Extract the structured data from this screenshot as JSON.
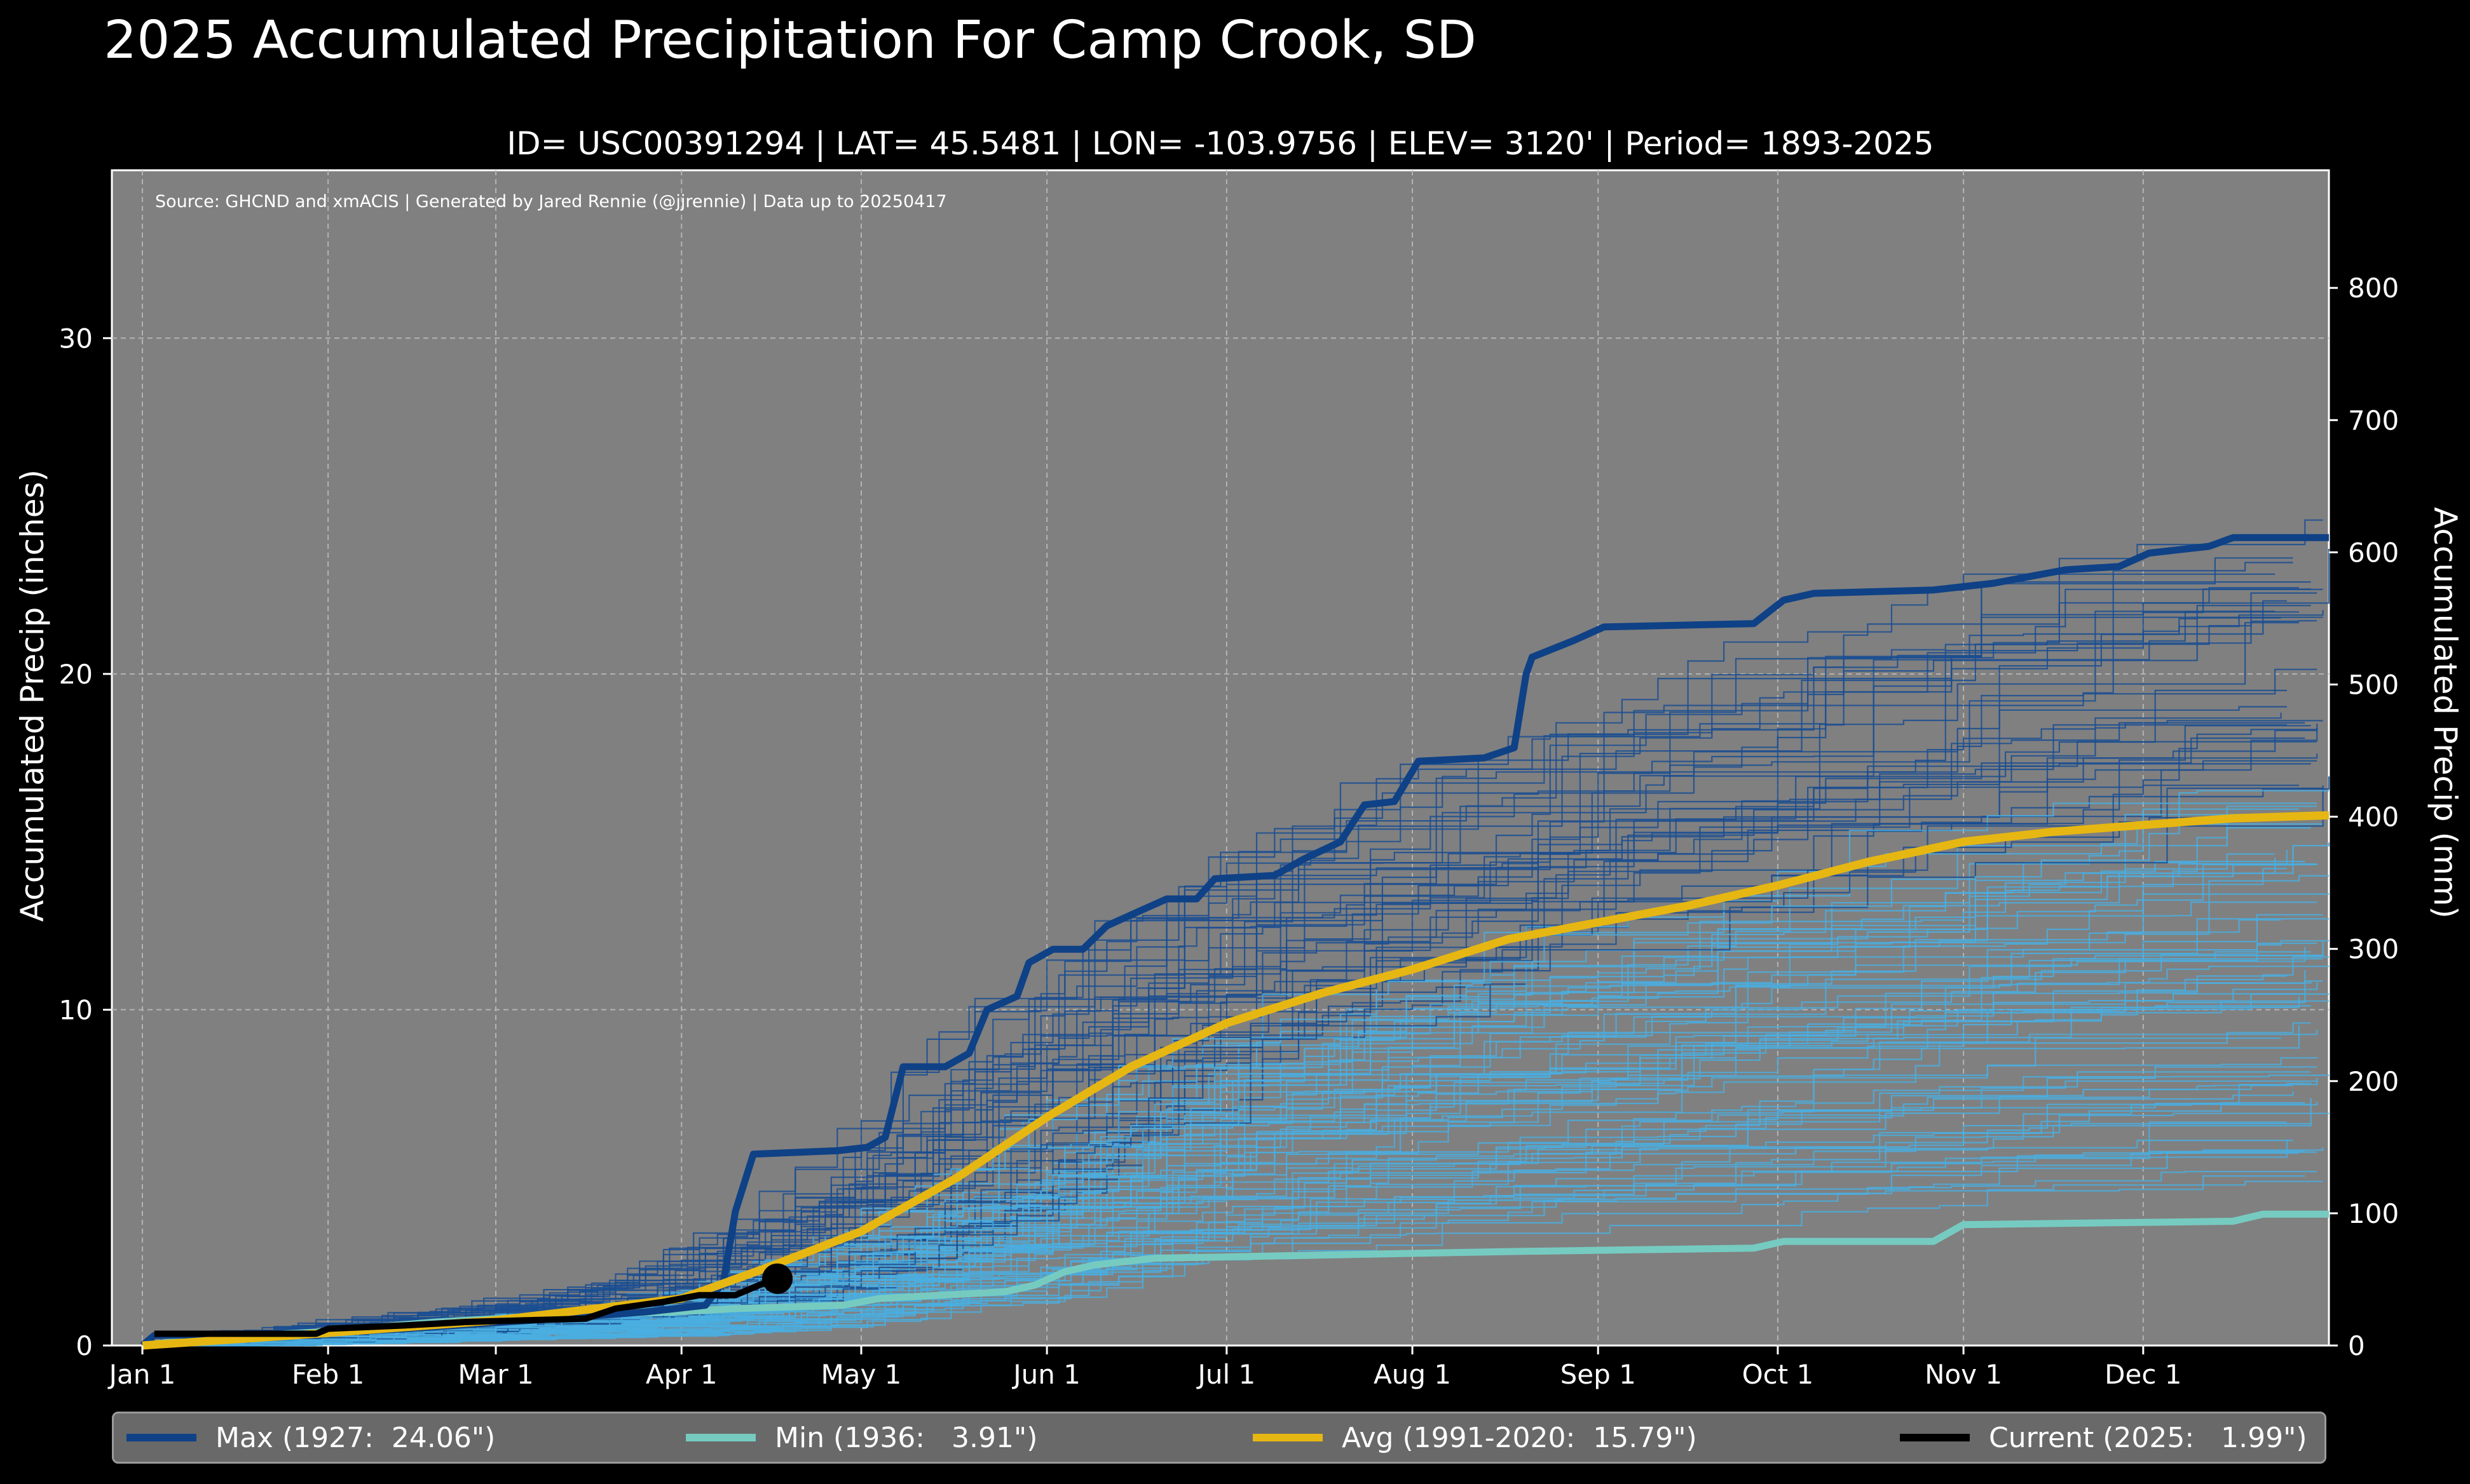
{
  "title": "2025 Accumulated Precipitation For Camp Crook, SD",
  "subtitle": "ID= USC00391294 | LAT= 45.5481 | LON= -103.9756 | ELEV= 3120' | Period= 1893-2025",
  "source_note": "Source: GHCND and xmACIS | Generated by Jared Rennie (@jjrennie) | Data up to 20250417",
  "colors": {
    "background": "#000000",
    "plot_bg": "#808080",
    "max": "#0f4186",
    "min": "#76cbc1",
    "avg": "#e6b712",
    "current": "#000000",
    "history_dark": "#1a4e92",
    "history_light": "#4aaee0"
  },
  "chart_data": {
    "type": "line",
    "xlabel": "",
    "ylabel": "Accumulated Precip (inches)",
    "ylabel_right": "Accumulated Precip (mm)",
    "x_unit": "day_of_year",
    "xlim": [
      1,
      366
    ],
    "ylim": [
      0,
      35
    ],
    "ylim_right_mm": [
      0,
      889
    ],
    "grid": true,
    "x_ticks": [
      {
        "day": 1,
        "label": "Jan 1"
      },
      {
        "day": 32,
        "label": "Feb 1"
      },
      {
        "day": 60,
        "label": "Mar 1"
      },
      {
        "day": 91,
        "label": "Apr 1"
      },
      {
        "day": 121,
        "label": "May 1"
      },
      {
        "day": 152,
        "label": "Jun 1"
      },
      {
        "day": 182,
        "label": "Jul 1"
      },
      {
        "day": 213,
        "label": "Aug 1"
      },
      {
        "day": 244,
        "label": "Sep 1"
      },
      {
        "day": 274,
        "label": "Oct 1"
      },
      {
        "day": 305,
        "label": "Nov 1"
      },
      {
        "day": 335,
        "label": "Dec 1"
      }
    ],
    "y_ticks_left": [
      0,
      10,
      20,
      30
    ],
    "y_ticks_right": [
      0,
      100,
      200,
      300,
      400,
      500,
      600,
      700,
      800
    ],
    "series": [
      {
        "name": "Max (1927:  24.06\")",
        "key": "max",
        "points": [
          [
            1,
            0
          ],
          [
            3,
            0.3
          ],
          [
            30,
            0.35
          ],
          [
            45,
            0.5
          ],
          [
            70,
            0.8
          ],
          [
            85,
            1.0
          ],
          [
            95,
            1.2
          ],
          [
            98,
            1.9
          ],
          [
            100,
            4.0
          ],
          [
            103,
            5.7
          ],
          [
            117,
            5.8
          ],
          [
            122,
            5.9
          ],
          [
            125,
            6.2
          ],
          [
            128,
            8.3
          ],
          [
            135,
            8.3
          ],
          [
            139,
            8.7
          ],
          [
            142,
            10.0
          ],
          [
            147,
            10.4
          ],
          [
            149,
            11.4
          ],
          [
            153,
            11.8
          ],
          [
            158,
            11.8
          ],
          [
            162,
            12.5
          ],
          [
            167,
            12.9
          ],
          [
            172,
            13.3
          ],
          [
            177,
            13.3
          ],
          [
            180,
            13.9
          ],
          [
            190,
            14.0
          ],
          [
            195,
            14.5
          ],
          [
            201,
            15.0
          ],
          [
            205,
            16.1
          ],
          [
            210,
            16.2
          ],
          [
            214,
            17.4
          ],
          [
            225,
            17.5
          ],
          [
            230,
            17.8
          ],
          [
            232,
            20.0
          ],
          [
            233,
            20.5
          ],
          [
            240,
            21.0
          ],
          [
            245,
            21.4
          ],
          [
            270,
            21.5
          ],
          [
            275,
            22.2
          ],
          [
            280,
            22.4
          ],
          [
            300,
            22.5
          ],
          [
            310,
            22.7
          ],
          [
            322,
            23.1
          ],
          [
            331,
            23.2
          ],
          [
            336,
            23.6
          ],
          [
            346,
            23.8
          ],
          [
            350,
            24.06
          ],
          [
            366,
            24.06
          ]
        ]
      },
      {
        "name": "Min (1936:   3.91\")",
        "key": "min",
        "points": [
          [
            1,
            0
          ],
          [
            10,
            0.2
          ],
          [
            30,
            0.4
          ],
          [
            50,
            0.7
          ],
          [
            70,
            0.9
          ],
          [
            90,
            1.0
          ],
          [
            100,
            1.1
          ],
          [
            118,
            1.2
          ],
          [
            124,
            1.4
          ],
          [
            145,
            1.6
          ],
          [
            150,
            1.8
          ],
          [
            155,
            2.2
          ],
          [
            160,
            2.4
          ],
          [
            170,
            2.6
          ],
          [
            200,
            2.7
          ],
          [
            230,
            2.8
          ],
          [
            270,
            2.9
          ],
          [
            275,
            3.1
          ],
          [
            300,
            3.1
          ],
          [
            305,
            3.6
          ],
          [
            350,
            3.7
          ],
          [
            355,
            3.91
          ],
          [
            366,
            3.91
          ]
        ]
      },
      {
        "name": "Avg (1991-2020:  15.79\")",
        "key": "avg",
        "points": [
          [
            1,
            0
          ],
          [
            30,
            0.35
          ],
          [
            60,
            0.75
          ],
          [
            91,
            1.4
          ],
          [
            105,
            2.3
          ],
          [
            121,
            3.4
          ],
          [
            137,
            5.0
          ],
          [
            152,
            6.8
          ],
          [
            166,
            8.3
          ],
          [
            182,
            9.6
          ],
          [
            198,
            10.5
          ],
          [
            213,
            11.2
          ],
          [
            229,
            12.1
          ],
          [
            244,
            12.6
          ],
          [
            259,
            13.1
          ],
          [
            274,
            13.7
          ],
          [
            289,
            14.4
          ],
          [
            305,
            15.0
          ],
          [
            320,
            15.3
          ],
          [
            335,
            15.5
          ],
          [
            350,
            15.7
          ],
          [
            366,
            15.79
          ]
        ]
      },
      {
        "name": "Current (2025:   1.99\")",
        "key": "current",
        "points": [
          [
            3,
            0.35
          ],
          [
            30,
            0.35
          ],
          [
            32,
            0.5
          ],
          [
            45,
            0.6
          ],
          [
            55,
            0.7
          ],
          [
            75,
            0.8
          ],
          [
            80,
            1.1
          ],
          [
            88,
            1.3
          ],
          [
            94,
            1.5
          ],
          [
            100,
            1.5
          ],
          [
            104,
            1.8
          ],
          [
            107,
            1.99
          ]
        ]
      }
    ],
    "current_marker": {
      "day": 107,
      "value": 1.99
    }
  },
  "legend": [
    {
      "key": "max",
      "label": "Max (1927:  24.06\")"
    },
    {
      "key": "min",
      "label": "Min (1936:   3.91\")"
    },
    {
      "key": "avg",
      "label": "Avg (1991-2020:  15.79\")"
    },
    {
      "key": "current",
      "label": "Current (2025:   1.99\")"
    }
  ]
}
